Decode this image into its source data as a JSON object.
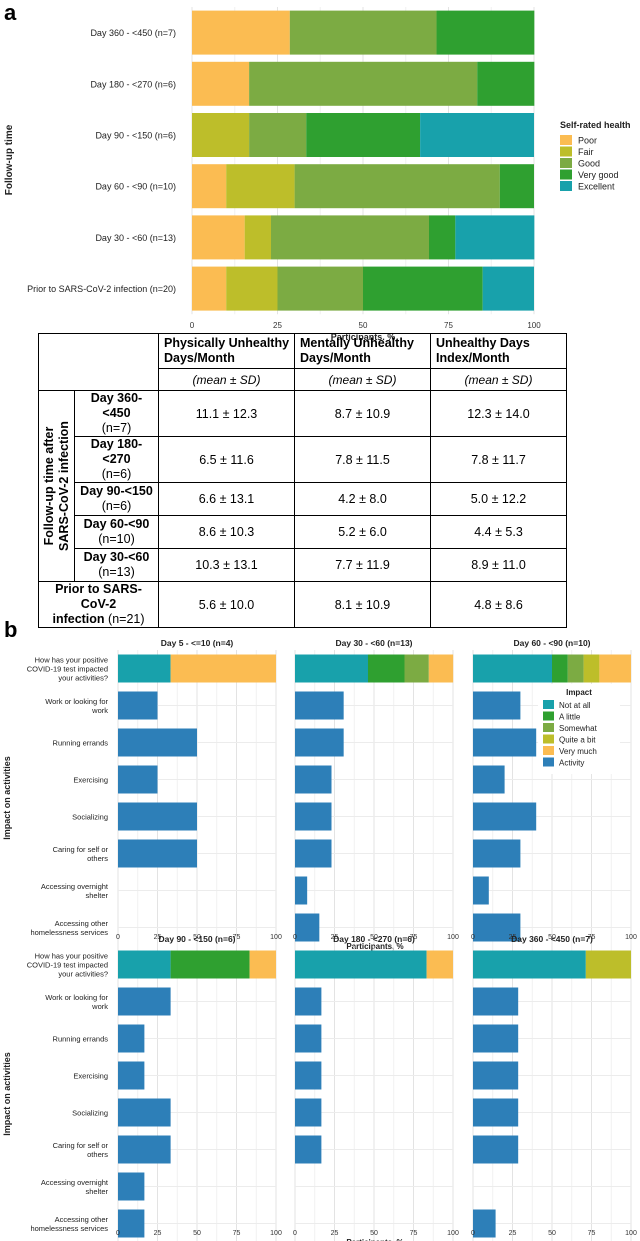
{
  "panel_a": {
    "label": "a",
    "chart_data": {
      "type": "bar",
      "orientation": "horizontal-stacked",
      "ylabel": "Follow-up time",
      "xlabel": "Participants, %",
      "xlim": [
        0,
        100
      ],
      "xticks": [
        "0",
        "25",
        "50",
        "75",
        "100"
      ],
      "categories": [
        "Day 360 - <450 (n=7)",
        "Day 180 - <270 (n=6)",
        "Day 90 - <150 (n=6)",
        "Day 60 - <90 (n=10)",
        "Day 30 - <60 (n=13)",
        "Prior to SARS-CoV-2 infection (n=20)"
      ],
      "legend_title": "Self-rated health",
      "legend_position": "right",
      "series": [
        {
          "name": "Poor",
          "color": "#FBBC52",
          "values": [
            28.6,
            16.7,
            0,
            10,
            15.4,
            10
          ]
        },
        {
          "name": "Fair",
          "color": "#BDBE2A",
          "values": [
            0,
            0,
            16.7,
            20,
            7.7,
            15
          ]
        },
        {
          "name": "Good",
          "color": "#7CAB43",
          "values": [
            42.9,
            66.7,
            16.7,
            60,
            46.2,
            25
          ]
        },
        {
          "name": "Very good",
          "color": "#2FA030",
          "values": [
            28.6,
            16.7,
            33.3,
            10,
            7.7,
            35
          ]
        },
        {
          "name": "Excellent",
          "color": "#18A1AB",
          "values": [
            0,
            0,
            33.3,
            0,
            23.1,
            15
          ]
        }
      ]
    }
  },
  "table": {
    "columns": [
      {
        "title": "Physically Unhealthy Days/Month",
        "line1": "Physically Unhealthy",
        "line2": "Days/Month",
        "unit": "(mean ± SD)"
      },
      {
        "title": "Mentally Unhealthy Days/Month",
        "line1": "Mentally Unhealthy",
        "line2": "Days/Month",
        "unit": "(mean ± SD)"
      },
      {
        "title": "Unhealthy Days Index/Month",
        "line1": "Unhealthy Days",
        "line2": "Index/Month",
        "unit": "(mean ± SD)"
      }
    ],
    "group_label_line1": "Follow-up time after",
    "group_label_line2": "SARS-CoV-2 infection",
    "rows": [
      {
        "name": "Day 360-<450",
        "n": "(n=7)",
        "values": [
          "11.1 ± 12.3",
          "8.7 ± 10.9",
          "12.3 ± 14.0"
        ]
      },
      {
        "name": "Day 180-<270",
        "n": "(n=6)",
        "values": [
          "6.5 ± 11.6",
          "7.8 ± 11.5",
          "7.8 ± 11.7"
        ]
      },
      {
        "name": "Day 90-<150",
        "n": "(n=6)",
        "values": [
          "6.6 ± 13.1",
          "4.2 ± 8.0",
          "5.0 ± 12.2"
        ]
      },
      {
        "name": "Day 60-<90",
        "n": "(n=10)",
        "values": [
          "8.6 ± 10.3",
          "5.2 ± 6.0",
          "4.4 ± 5.3"
        ]
      },
      {
        "name": "Day 30-<60",
        "n": "(n=13)",
        "values": [
          "10.3 ± 13.1",
          "7.7 ± 11.9",
          "8.9 ± 11.0"
        ]
      }
    ],
    "prior_row": {
      "name_line1": "Prior to SARS-CoV-2",
      "name_line2": "infection",
      "n": "(n=21)",
      "values": [
        "5.6 ± 10.0",
        "8.1 ± 10.9",
        "4.8 ± 8.6"
      ]
    }
  },
  "panel_b": {
    "label": "b",
    "chart_data": {
      "type": "bar",
      "orientation": "horizontal-faceted",
      "ylabel": "Impact on activities",
      "xlabel": "Participants, %",
      "xlim": [
        0,
        100
      ],
      "xticks": [
        "0",
        "25",
        "50",
        "75",
        "100"
      ],
      "categories": [
        "How has your positive COVID-19 test impacted your activities?",
        "Work or looking for work",
        "Running errands",
        "Exercising",
        "Socializing",
        "Caring for self or others",
        "Accessing overnight shelter",
        "Accessing other homelessness services"
      ],
      "category_lines": [
        [
          "How has your positive",
          "COVID-19 test impacted",
          "your activities?"
        ],
        [
          "Work or looking for",
          "work"
        ],
        [
          "Running errands"
        ],
        [
          "Exercising"
        ],
        [
          "Socializing"
        ],
        [
          "Caring for self or",
          "others"
        ],
        [
          "Accessing overnight",
          "shelter"
        ],
        [
          "Accessing other",
          "homelessness services"
        ]
      ],
      "legend_title": "Impact",
      "legend_position": "inside top-right panel",
      "legend": [
        {
          "name": "Not at all",
          "color": "#18A1AB"
        },
        {
          "name": "A little",
          "color": "#2FA030"
        },
        {
          "name": "Somewhat",
          "color": "#7CAB43"
        },
        {
          "name": "Quite a bit",
          "color": "#BDBE2A"
        },
        {
          "name": "Very much",
          "color": "#FBBC52"
        },
        {
          "name": "Activity",
          "color": "#2D7FB8"
        }
      ],
      "facets": [
        {
          "title": "Day 5 - <=10 (n=4)",
          "impact": [
            33.3,
            0,
            0,
            0,
            66.7
          ],
          "activities": [
            25,
            50,
            25,
            50,
            50,
            0,
            0
          ]
        },
        {
          "title": "Day 30 - <60 (n=13)",
          "impact": [
            46.2,
            23.1,
            15.4,
            0,
            15.4
          ],
          "activities": [
            30.8,
            30.8,
            23.1,
            23.1,
            23.1,
            7.7,
            15.4
          ]
        },
        {
          "title": "Day 60 - <90 (n=10)",
          "impact": [
            50,
            10,
            10,
            10,
            20
          ],
          "activities": [
            30,
            40,
            20,
            40,
            30,
            10,
            30
          ]
        },
        {
          "title": "Day 90 - <150 (n=6)",
          "impact": [
            33.3,
            50,
            0,
            0,
            16.7
          ],
          "activities": [
            33.3,
            16.7,
            16.7,
            33.3,
            33.3,
            16.7,
            16.7
          ]
        },
        {
          "title": "Day 180 - <270 (n=6)",
          "impact": [
            83.3,
            0,
            0,
            0,
            16.7
          ],
          "activities": [
            16.7,
            16.7,
            16.7,
            16.7,
            16.7,
            0,
            0
          ]
        },
        {
          "title": "Day 360 - <450 (n=7)",
          "impact": [
            71.4,
            0,
            0,
            28.6,
            0
          ],
          "activities": [
            28.6,
            28.6,
            28.6,
            28.6,
            28.6,
            0,
            14.3
          ]
        }
      ]
    }
  }
}
